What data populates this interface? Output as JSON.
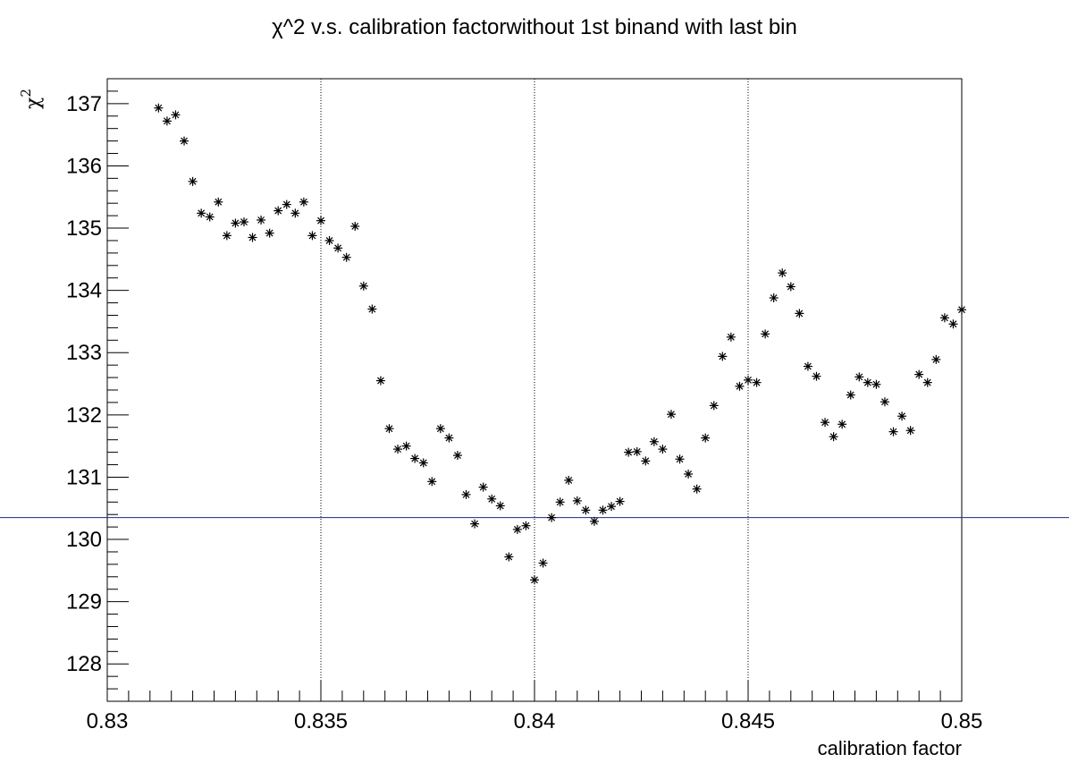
{
  "chart_data": {
    "type": "scatter",
    "title": "χ^2 v.s. calibration factorwithout 1st binand with last bin",
    "xlabel": "calibration factor",
    "ylabel_base": "χ",
    "ylabel_sup": "2",
    "xlim": [
      0.83,
      0.85
    ],
    "ylim": [
      127.4,
      137.4
    ],
    "xticks": [
      0.83,
      0.835,
      0.84,
      0.845,
      0.85
    ],
    "xtick_labels": [
      "0.83",
      "0.835",
      "0.84",
      "0.845",
      "0.85"
    ],
    "yticks": [
      128,
      129,
      130,
      131,
      132,
      133,
      134,
      135,
      136,
      137
    ],
    "ytick_labels": [
      "128",
      "129",
      "130",
      "131",
      "132",
      "133",
      "134",
      "135",
      "136",
      "137"
    ],
    "vertical_gridlines": [
      0.835,
      0.84,
      0.845,
      0.85
    ],
    "horizontal_reference_line": 130.35,
    "marker": "*",
    "marker_color": "#000000",
    "reference_line_color": "#1f2a80",
    "points": [
      [
        0.8312,
        136.93
      ],
      [
        0.8314,
        136.72
      ],
      [
        0.8316,
        136.82
      ],
      [
        0.8318,
        136.4
      ],
      [
        0.832,
        135.75
      ],
      [
        0.8322,
        135.24
      ],
      [
        0.8324,
        135.18
      ],
      [
        0.8326,
        135.42
      ],
      [
        0.8328,
        134.88
      ],
      [
        0.833,
        135.08
      ],
      [
        0.8332,
        135.1
      ],
      [
        0.8334,
        134.85
      ],
      [
        0.8336,
        135.13
      ],
      [
        0.8338,
        134.92
      ],
      [
        0.834,
        135.28
      ],
      [
        0.8342,
        135.38
      ],
      [
        0.8344,
        135.24
      ],
      [
        0.8346,
        135.42
      ],
      [
        0.8348,
        134.88
      ],
      [
        0.835,
        135.12
      ],
      [
        0.8352,
        134.8
      ],
      [
        0.8354,
        134.68
      ],
      [
        0.8356,
        134.53
      ],
      [
        0.8358,
        135.03
      ],
      [
        0.836,
        134.07
      ],
      [
        0.8362,
        133.7
      ],
      [
        0.8364,
        132.55
      ],
      [
        0.8366,
        131.78
      ],
      [
        0.8368,
        131.45
      ],
      [
        0.837,
        131.5
      ],
      [
        0.8372,
        131.3
      ],
      [
        0.8374,
        131.23
      ],
      [
        0.8376,
        130.93
      ],
      [
        0.8378,
        131.78
      ],
      [
        0.838,
        131.63
      ],
      [
        0.8382,
        131.35
      ],
      [
        0.8384,
        130.72
      ],
      [
        0.8386,
        130.25
      ],
      [
        0.8388,
        130.84
      ],
      [
        0.839,
        130.65
      ],
      [
        0.8392,
        130.54
      ],
      [
        0.8394,
        129.72
      ],
      [
        0.8396,
        130.16
      ],
      [
        0.8398,
        130.22
      ],
      [
        0.84,
        129.35
      ],
      [
        0.8402,
        129.62
      ],
      [
        0.8404,
        130.35
      ],
      [
        0.8406,
        130.6
      ],
      [
        0.8408,
        130.95
      ],
      [
        0.841,
        130.62
      ],
      [
        0.8412,
        130.47
      ],
      [
        0.8414,
        130.29
      ],
      [
        0.8416,
        130.47
      ],
      [
        0.8418,
        130.53
      ],
      [
        0.842,
        130.61
      ],
      [
        0.8422,
        131.4
      ],
      [
        0.8424,
        131.41
      ],
      [
        0.8426,
        131.26
      ],
      [
        0.8428,
        131.57
      ],
      [
        0.843,
        131.45
      ],
      [
        0.8432,
        132.01
      ],
      [
        0.8434,
        131.29
      ],
      [
        0.8436,
        131.05
      ],
      [
        0.8438,
        130.81
      ],
      [
        0.844,
        131.63
      ],
      [
        0.8442,
        132.15
      ],
      [
        0.8444,
        132.94
      ],
      [
        0.8446,
        133.25
      ],
      [
        0.8448,
        132.46
      ],
      [
        0.845,
        132.56
      ],
      [
        0.8452,
        132.52
      ],
      [
        0.8454,
        133.3
      ],
      [
        0.8456,
        133.88
      ],
      [
        0.8458,
        134.28
      ],
      [
        0.846,
        134.06
      ],
      [
        0.8462,
        133.63
      ],
      [
        0.8464,
        132.78
      ],
      [
        0.8466,
        132.62
      ],
      [
        0.8468,
        131.88
      ],
      [
        0.847,
        131.65
      ],
      [
        0.8472,
        131.85
      ],
      [
        0.8474,
        132.32
      ],
      [
        0.8476,
        132.61
      ],
      [
        0.8478,
        132.52
      ],
      [
        0.848,
        132.49
      ],
      [
        0.8482,
        132.21
      ],
      [
        0.8484,
        131.73
      ],
      [
        0.8486,
        131.98
      ],
      [
        0.8488,
        131.75
      ],
      [
        0.849,
        132.65
      ],
      [
        0.8492,
        132.52
      ],
      [
        0.8494,
        132.89
      ],
      [
        0.8496,
        133.56
      ],
      [
        0.8498,
        133.46
      ],
      [
        0.85,
        133.69
      ]
    ]
  }
}
